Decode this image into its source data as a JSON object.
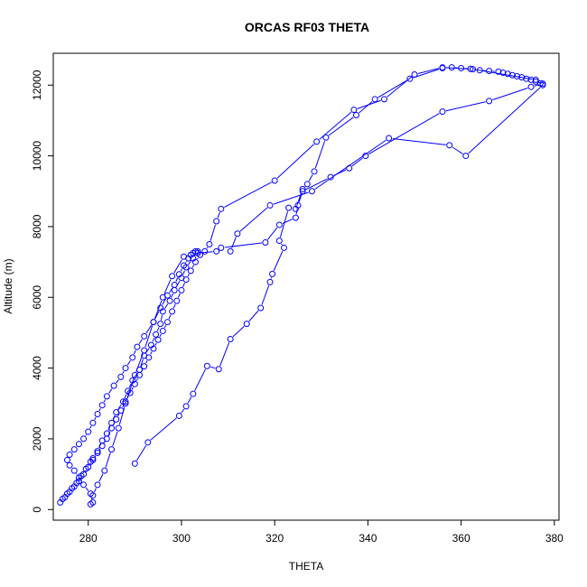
{
  "chart_data": {
    "type": "line",
    "title": "ORCAS RF03 THETA",
    "xlabel": "THETA",
    "ylabel": "Altitude (m)",
    "xlim": [
      272.5,
      381
    ],
    "ylim": [
      -300,
      12900
    ],
    "xticks": [
      280,
      300,
      320,
      340,
      360,
      380
    ],
    "yticks": [
      0,
      2000,
      4000,
      6000,
      8000,
      10000,
      12000
    ],
    "grid": false,
    "legend": "none",
    "series_color": "#0000ff",
    "series": [
      {
        "x": [
          290,
          292.8,
          299.5,
          301,
          302.5,
          305.5,
          308,
          310.5,
          314,
          317,
          319,
          319.5,
          322,
          321,
          323,
          324.5,
          326,
          327,
          328.5,
          331,
          337.5,
          341.5,
          349,
          356,
          358,
          360,
          362,
          364,
          366,
          368,
          369,
          370,
          371,
          372,
          373,
          374,
          375,
          376,
          377,
          377.5,
          375,
          366,
          356,
          339.5,
          336,
          332,
          326,
          325,
          324.5,
          321,
          318,
          308.5,
          307.5,
          303.5,
          302,
          300.5,
          298,
          296,
          294,
          292,
          290,
          288,
          286.5,
          285,
          283.5,
          282,
          281,
          280.5
        ],
        "y": [
          1300,
          1900,
          2650,
          2920,
          3270,
          4060,
          3970,
          4820,
          5250,
          5700,
          6430,
          6660,
          7400,
          7600,
          8530,
          8500,
          9060,
          9200,
          9560,
          10520,
          11150,
          11600,
          12180,
          12480,
          12500,
          12480,
          12460,
          12420,
          12400,
          12380,
          12350,
          12320,
          12280,
          12250,
          12220,
          12180,
          12150,
          12100,
          12050,
          12040,
          11950,
          11550,
          11250,
          10000,
          9650,
          9400,
          9000,
          8600,
          8250,
          8050,
          7550,
          7400,
          7300,
          7250,
          7200,
          7150,
          6600,
          6000,
          5300,
          4500,
          3800,
          3000,
          2300,
          1700,
          1100,
          700,
          400,
          150
        ]
      },
      {
        "x": [
          274,
          275,
          276,
          277,
          278,
          279,
          280,
          281,
          282,
          283,
          284,
          285,
          286,
          287,
          288,
          289,
          290,
          291,
          292,
          293,
          294,
          295,
          296,
          297,
          298,
          299,
          300,
          301,
          302,
          303,
          304,
          305,
          306,
          307.5,
          308.5,
          320,
          329,
          337,
          343.5,
          350,
          356,
          362.5,
          376,
          377.5,
          361,
          357.5,
          344.5,
          328,
          319,
          312,
          310.5
        ],
        "y": [
          200,
          350,
          500,
          650,
          800,
          1000,
          1200,
          1400,
          1600,
          1800,
          2000,
          2300,
          2550,
          2800,
          3050,
          3300,
          3550,
          3800,
          4050,
          4300,
          4550,
          4800,
          5050,
          5300,
          5600,
          5900,
          6200,
          6500,
          6750,
          7000,
          7200,
          7300,
          7500,
          8150,
          8500,
          9300,
          10400,
          11300,
          11600,
          12300,
          12500,
          12450,
          12150,
          12000,
          10000,
          10300,
          10500,
          9000,
          8600,
          7800,
          7300
        ]
      },
      {
        "x": [
          274.5,
          275.5,
          276.5,
          277.5,
          278.5,
          279.5,
          280.5,
          281,
          282,
          283,
          284,
          285,
          286,
          287.5,
          288.5,
          289.5,
          291,
          292,
          293.5,
          294.5,
          295.5,
          296,
          297.5,
          298.5,
          300,
          301,
          302.5,
          303.5
        ],
        "y": [
          300,
          450,
          600,
          750,
          950,
          1150,
          1350,
          1450,
          1650,
          1950,
          2150,
          2450,
          2750,
          3050,
          3350,
          3650,
          3950,
          4350,
          4650,
          4950,
          5250,
          5600,
          5900,
          6200,
          6550,
          6850,
          7100,
          7300
        ]
      },
      {
        "x": [
          281,
          280.5,
          279,
          278,
          277,
          276,
          275.5,
          276,
          277,
          278,
          279,
          280,
          281,
          282,
          283,
          284,
          285.5,
          287,
          288,
          289.5,
          290.5,
          292,
          294,
          295.5,
          297,
          298.5,
          299.5,
          300.5,
          301.5,
          302.5,
          303
        ],
        "y": [
          200,
          450,
          700,
          900,
          1100,
          1250,
          1400,
          1550,
          1700,
          1850,
          2000,
          2200,
          2450,
          2700,
          2950,
          3200,
          3500,
          3750,
          4000,
          4300,
          4600,
          4900,
          5300,
          5700,
          6050,
          6350,
          6650,
          6900,
          7100,
          7250,
          7300
        ]
      }
    ]
  }
}
